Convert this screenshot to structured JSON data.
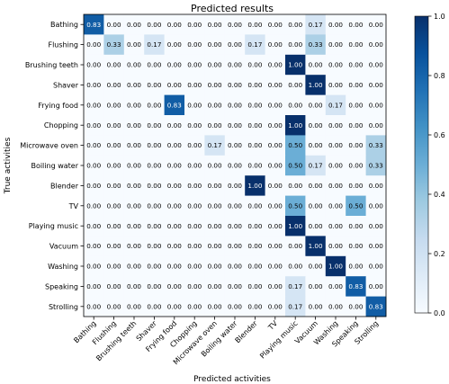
{
  "chart_data": {
    "type": "heatmap",
    "title": "Predicted results",
    "xlabel": "Predicted activities",
    "ylabel": "True activities",
    "categories": [
      "Bathing",
      "Flushing",
      "Brushing teeth",
      "Shaver",
      "Frying food",
      "Chopping",
      "Microwave oven",
      "Boiling water",
      "Blender",
      "TV",
      "Playing music",
      "Vacuum",
      "Washing",
      "Speaking",
      "Strolling"
    ],
    "values": [
      [
        0.83,
        0,
        0,
        0,
        0,
        0,
        0,
        0,
        0,
        0,
        0,
        0.17,
        0,
        0,
        0
      ],
      [
        0,
        0.33,
        0,
        0.17,
        0,
        0,
        0,
        0,
        0.17,
        0,
        0,
        0.33,
        0,
        0,
        0
      ],
      [
        0,
        0,
        0,
        0,
        0,
        0,
        0,
        0,
        0,
        0,
        1.0,
        0,
        0,
        0,
        0
      ],
      [
        0,
        0,
        0,
        0,
        0,
        0,
        0,
        0,
        0,
        0,
        0,
        1.0,
        0,
        0,
        0
      ],
      [
        0,
        0,
        0,
        0,
        0.83,
        0,
        0,
        0,
        0,
        0,
        0,
        0,
        0.17,
        0,
        0
      ],
      [
        0,
        0,
        0,
        0,
        0,
        0,
        0,
        0,
        0,
        0,
        1.0,
        0,
        0,
        0,
        0
      ],
      [
        0,
        0,
        0,
        0,
        0,
        0,
        0.17,
        0,
        0,
        0,
        0.5,
        0,
        0,
        0,
        0.33
      ],
      [
        0,
        0,
        0,
        0,
        0,
        0,
        0,
        0,
        0,
        0,
        0.5,
        0.17,
        0,
        0,
        0.33
      ],
      [
        0,
        0,
        0,
        0,
        0,
        0,
        0,
        0,
        1.0,
        0,
        0,
        0,
        0,
        0,
        0
      ],
      [
        0,
        0,
        0,
        0,
        0,
        0,
        0,
        0,
        0,
        0,
        0.5,
        0,
        0,
        0.5,
        0
      ],
      [
        0,
        0,
        0,
        0,
        0,
        0,
        0,
        0,
        0,
        0,
        1.0,
        0,
        0,
        0,
        0
      ],
      [
        0,
        0,
        0,
        0,
        0,
        0,
        0,
        0,
        0,
        0,
        0,
        1.0,
        0,
        0,
        0
      ],
      [
        0,
        0,
        0,
        0,
        0,
        0,
        0,
        0,
        0,
        0,
        0,
        0,
        1.0,
        0,
        0
      ],
      [
        0,
        0,
        0,
        0,
        0,
        0,
        0,
        0,
        0,
        0,
        0.17,
        0,
        0,
        0.83,
        0
      ],
      [
        0,
        0,
        0,
        0,
        0,
        0,
        0,
        0,
        0,
        0,
        0.17,
        0,
        0,
        0,
        0.83
      ]
    ],
    "colorbar": {
      "range": [
        0,
        1
      ],
      "ticks": [
        0.0,
        0.2,
        0.4,
        0.6,
        0.8,
        1.0
      ],
      "tick_labels": [
        "0.0",
        "0.2",
        "0.4",
        "0.6",
        "0.8",
        "1.0"
      ],
      "colormap": "Blues",
      "low_color": "#f7fbff",
      "high_color": "#08306b"
    },
    "cell_label_format": "two_decimals",
    "grid": false
  }
}
